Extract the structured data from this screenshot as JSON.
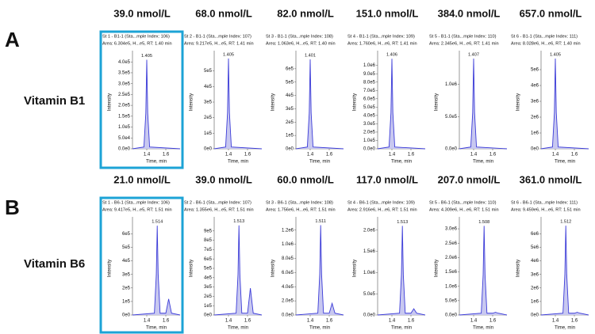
{
  "panels": [
    {
      "label": "A",
      "name": "Vitamin B1"
    },
    {
      "label": "B",
      "name": "Vitamin B6"
    }
  ],
  "chart_data": [
    {
      "type": "line",
      "title": "39.0 nmol/L",
      "subtitle": "St 1 - B1-1 (Sta...mple Index: 106)",
      "info": "Area: 6.304e5, H...e5, RT: 1.40 min",
      "annotation": "1.405",
      "xlabel": "Time, min",
      "ylabel": "Intensity",
      "color": "#3c3cd8",
      "fill": "#c8c8f0",
      "x": [
        1.25,
        1.37,
        1.39,
        1.4,
        1.41,
        1.43,
        1.75
      ],
      "values": [
        0,
        8200,
        164000,
        410000,
        164000,
        8200,
        0
      ],
      "xlim": [
        1.25,
        1.75
      ],
      "xticks": [
        1.4,
        1.6
      ],
      "ylim": [
        0,
        430000
      ],
      "yticks": [
        {
          "value": 0,
          "label": "0.0e0"
        },
        {
          "value": 50000,
          "label": "5.0e4"
        },
        {
          "value": 100000,
          "label": "1.0e5"
        },
        {
          "value": 150000,
          "label": "1.5e5"
        },
        {
          "value": 200000,
          "label": "2.0e5"
        },
        {
          "value": 250000,
          "label": "2.5e5"
        },
        {
          "value": 300000,
          "label": "3.0e5"
        },
        {
          "value": 350000,
          "label": "3.5e5"
        },
        {
          "value": 400000,
          "label": "4.0e5"
        }
      ]
    },
    {
      "type": "line",
      "title": "68.0 nmol/L",
      "subtitle": "St 2 - B1-1 (Sta...mple Index: 107)",
      "info": "Area: 9.217e5, H...e5, RT: 1.41 min",
      "annotation": "1.405",
      "xlabel": "Time, min",
      "ylabel": "Intensity",
      "color": "#3c3cd8",
      "fill": "#c8c8f0",
      "x": [
        1.25,
        1.37,
        1.39,
        1.4,
        1.41,
        1.43,
        1.75
      ],
      "values": [
        0,
        11600,
        232000,
        580000,
        232000,
        11600,
        0
      ],
      "xlim": [
        1.25,
        1.75
      ],
      "xticks": [
        1.4,
        1.6
      ],
      "ylim": [
        0,
        600000
      ],
      "yticks": [
        {
          "value": 0,
          "label": "0e0"
        },
        {
          "value": 100000,
          "label": "1e5"
        },
        {
          "value": 200000,
          "label": "2e5"
        },
        {
          "value": 300000,
          "label": "3e5"
        },
        {
          "value": 400000,
          "label": "4e5"
        },
        {
          "value": 500000,
          "label": "5e5"
        }
      ]
    },
    {
      "type": "line",
      "title": "82.0 nmol/L",
      "subtitle": "St 3 - B1-1 (Sta...mple Index: 108)",
      "info": "Area: 1.063e6, H...e5, RT: 1.40 min",
      "annotation": "1.401",
      "xlabel": "Time, min",
      "ylabel": "Intensity",
      "color": "#3c3cd8",
      "fill": "#c8c8f0",
      "x": [
        1.25,
        1.37,
        1.39,
        1.4,
        1.41,
        1.43,
        1.75
      ],
      "values": [
        0,
        13400,
        268000,
        670000,
        268000,
        13400,
        0
      ],
      "xlim": [
        1.25,
        1.75
      ],
      "xticks": [
        1.4,
        1.6
      ],
      "ylim": [
        0,
        700000
      ],
      "yticks": [
        {
          "value": 0,
          "label": "0e0"
        },
        {
          "value": 100000,
          "label": "1e5"
        },
        {
          "value": 200000,
          "label": "2e5"
        },
        {
          "value": 300000,
          "label": "3e5"
        },
        {
          "value": 400000,
          "label": "4e5"
        },
        {
          "value": 500000,
          "label": "5e5"
        },
        {
          "value": 600000,
          "label": "6e5"
        }
      ]
    },
    {
      "type": "line",
      "title": "151.0 nmol/L",
      "subtitle": "St 4 - B1-1 (Sta...mple Index: 109)",
      "info": "Area: 1.760e6, H...e6, RT: 1.41 min",
      "annotation": "1.406",
      "xlabel": "Time, min",
      "ylabel": "Intensity",
      "color": "#3c3cd8",
      "fill": "#c8c8f0",
      "x": [
        1.25,
        1.37,
        1.39,
        1.4,
        1.41,
        1.43,
        1.75
      ],
      "values": [
        0,
        21600,
        432000,
        1080000,
        432000,
        21600,
        0
      ],
      "xlim": [
        1.25,
        1.75
      ],
      "xticks": [
        1.4,
        1.6
      ],
      "ylim": [
        0,
        1120000
      ],
      "yticks": [
        {
          "value": 0,
          "label": "0.0e0"
        },
        {
          "value": 100000,
          "label": "1.0e5"
        },
        {
          "value": 200000,
          "label": "2.0e5"
        },
        {
          "value": 300000,
          "label": "3.0e5"
        },
        {
          "value": 400000,
          "label": "4.0e5"
        },
        {
          "value": 500000,
          "label": "5.0e5"
        },
        {
          "value": 600000,
          "label": "6.0e5"
        },
        {
          "value": 700000,
          "label": "7.0e5"
        },
        {
          "value": 800000,
          "label": "8.0e5"
        },
        {
          "value": 900000,
          "label": "9.0e5"
        },
        {
          "value": 1000000,
          "label": "1.0e6"
        }
      ]
    },
    {
      "type": "line",
      "title": "384.0 nmol/L",
      "subtitle": "St 5 - B1-1 (Sta...mple Index: 110)",
      "info": "Area: 2.345e6, H...e6, RT: 1.41 min",
      "annotation": "1.407",
      "xlabel": "Time, min",
      "ylabel": "Intensity",
      "color": "#3c3cd8",
      "fill": "#c8c8f0",
      "x": [
        1.25,
        1.37,
        1.39,
        1.4,
        1.41,
        1.43,
        1.75
      ],
      "values": [
        0,
        28000,
        560000,
        1400000,
        560000,
        28000,
        0
      ],
      "xlim": [
        1.25,
        1.75
      ],
      "xticks": [
        1.4,
        1.6
      ],
      "ylim": [
        0,
        1450000
      ],
      "yticks": [
        {
          "value": 0,
          "label": "0.0e0"
        },
        {
          "value": 500000,
          "label": "5.0e5"
        },
        {
          "value": 1000000,
          "label": "1.0e6"
        }
      ]
    },
    {
      "type": "line",
      "title": "657.0 nmol/L",
      "subtitle": "St 6 - B1-1 (Sta...mple Index: 111)",
      "info": "Area: 8.028e6, H...e6, RT: 1.40 min",
      "annotation": "1.405",
      "xlabel": "Time, min",
      "ylabel": "Intensity",
      "color": "#3c3cd8",
      "fill": "#c8c8f0",
      "x": [
        1.25,
        1.37,
        1.39,
        1.4,
        1.41,
        1.43,
        1.75
      ],
      "values": [
        0,
        114000,
        2280000,
        5700000,
        2280000,
        114000,
        0
      ],
      "xlim": [
        1.25,
        1.75
      ],
      "xticks": [
        1.4,
        1.6
      ],
      "ylim": [
        0,
        5900000
      ],
      "yticks": [
        {
          "value": 0,
          "label": "0e0"
        },
        {
          "value": 1000000,
          "label": "1e6"
        },
        {
          "value": 2000000,
          "label": "2e6"
        },
        {
          "value": 3000000,
          "label": "3e6"
        },
        {
          "value": 4000000,
          "label": "4e6"
        },
        {
          "value": 5000000,
          "label": "5e6"
        }
      ]
    },
    {
      "type": "line",
      "title": "21.0 nmol/L",
      "subtitle": "St 1 - B6-1 (Sta...mple Index: 106)",
      "info": "Area: 9.417e5, H...e5, RT: 1.51 min",
      "annotation": "1.514",
      "xlabel": "Time, min",
      "ylabel": "Intensity",
      "color": "#3c3cd8",
      "fill": "#c8c8f0",
      "x": [
        1.25,
        1.48,
        1.5,
        1.51,
        1.52,
        1.54,
        1.6,
        1.63,
        1.66,
        1.75
      ],
      "values": [
        0,
        13200,
        297000,
        660000,
        297000,
        13200,
        13200,
        118800,
        13200,
        0
      ],
      "xlim": [
        1.25,
        1.75
      ],
      "xticks": [
        1.4,
        1.6
      ],
      "ylim": [
        0,
        690000
      ],
      "yticks": [
        {
          "value": 0,
          "label": "0e0"
        },
        {
          "value": 100000,
          "label": "1e5"
        },
        {
          "value": 200000,
          "label": "2e5"
        },
        {
          "value": 300000,
          "label": "3e5"
        },
        {
          "value": 400000,
          "label": "4e5"
        },
        {
          "value": 500000,
          "label": "5e5"
        },
        {
          "value": 600000,
          "label": "6e5"
        }
      ]
    },
    {
      "type": "line",
      "title": "39.0 nmol/L",
      "subtitle": "St 2 - B6-1 (Sta...mple Index: 107)",
      "info": "Area: 1.355e6, H...e5, RT: 1.51 min",
      "annotation": "1.513",
      "xlabel": "Time, min",
      "ylabel": "Intensity",
      "color": "#3c3cd8",
      "fill": "#c8c8f0",
      "x": [
        1.25,
        1.48,
        1.5,
        1.51,
        1.52,
        1.54,
        1.6,
        1.63,
        1.66,
        1.75
      ],
      "values": [
        0,
        19200,
        432000,
        960000,
        432000,
        19200,
        19200,
        288000,
        19200,
        0
      ],
      "xlim": [
        1.25,
        1.75
      ],
      "xticks": [
        1.4,
        1.6
      ],
      "ylim": [
        0,
        1000000
      ],
      "yticks": [
        {
          "value": 0,
          "label": "0e0"
        },
        {
          "value": 100000,
          "label": "1e5"
        },
        {
          "value": 200000,
          "label": "2e5"
        },
        {
          "value": 300000,
          "label": "3e5"
        },
        {
          "value": 400000,
          "label": "4e5"
        },
        {
          "value": 500000,
          "label": "5e5"
        },
        {
          "value": 600000,
          "label": "6e5"
        },
        {
          "value": 700000,
          "label": "7e5"
        },
        {
          "value": 800000,
          "label": "8e5"
        },
        {
          "value": 900000,
          "label": "9e5"
        }
      ]
    },
    {
      "type": "line",
      "title": "60.0 nmol/L",
      "subtitle": "St 3 - B6-1 (Sta...mple Index: 108)",
      "info": "Area: 1.756e6, H...e6, RT: 1.51 min",
      "annotation": "1.511",
      "xlabel": "Time, min",
      "ylabel": "Intensity",
      "color": "#3c3cd8",
      "fill": "#c8c8f0",
      "x": [
        1.25,
        1.48,
        1.5,
        1.51,
        1.52,
        1.54,
        1.6,
        1.63,
        1.66,
        1.75
      ],
      "values": [
        0,
        25400,
        571500,
        1270000,
        571500,
        25400,
        25400,
        165100,
        25400,
        0
      ],
      "xlim": [
        1.25,
        1.75
      ],
      "xticks": [
        1.4,
        1.6
      ],
      "ylim": [
        0,
        1320000
      ],
      "yticks": [
        {
          "value": 0,
          "label": "0.0e0"
        },
        {
          "value": 200000,
          "label": "2.0e5"
        },
        {
          "value": 400000,
          "label": "4.0e5"
        },
        {
          "value": 600000,
          "label": "6.0e5"
        },
        {
          "value": 800000,
          "label": "8.0e5"
        },
        {
          "value": 1000000,
          "label": "1.0e6"
        },
        {
          "value": 1200000,
          "label": "1.2e6"
        }
      ]
    },
    {
      "type": "line",
      "title": "117.0 nmol/L",
      "subtitle": "St 4 - B6-1 (Sta...mple Index: 109)",
      "info": "Area: 2.916e6, H...e6, RT: 1.51 min",
      "annotation": "1.513",
      "xlabel": "Time, min",
      "ylabel": "Intensity",
      "color": "#3c3cd8",
      "fill": "#c8c8f0",
      "x": [
        1.25,
        1.48,
        1.5,
        1.51,
        1.52,
        1.54,
        1.6,
        1.63,
        1.66,
        1.75
      ],
      "values": [
        0,
        42000,
        945000,
        2100000,
        945000,
        42000,
        42000,
        147000,
        42000,
        0
      ],
      "xlim": [
        1.25,
        1.75
      ],
      "xticks": [
        1.4,
        1.6
      ],
      "ylim": [
        0,
        2200000
      ],
      "yticks": [
        {
          "value": 0,
          "label": "0.0e0"
        },
        {
          "value": 500000,
          "label": "5.0e5"
        },
        {
          "value": 1000000,
          "label": "1.0e6"
        },
        {
          "value": 1500000,
          "label": "1.5e6"
        },
        {
          "value": 2000000,
          "label": "2.0e6"
        }
      ]
    },
    {
      "type": "line",
      "title": "207.0 nmol/L",
      "subtitle": "St 5 - B6-1 (Sta...mple Index: 110)",
      "info": "Area: 4.309e6, H...e6, RT: 1.51 min",
      "annotation": "1.508",
      "xlabel": "Time, min",
      "ylabel": "Intensity",
      "color": "#3c3cd8",
      "fill": "#c8c8f0",
      "x": [
        1.25,
        1.48,
        1.5,
        1.51,
        1.52,
        1.54,
        1.6,
        1.63,
        1.66,
        1.75
      ],
      "values": [
        0,
        62000,
        1395000,
        3100000,
        1395000,
        62000,
        62000,
        93000,
        62000,
        0
      ],
      "xlim": [
        1.25,
        1.75
      ],
      "xticks": [
        1.4,
        1.6
      ],
      "ylim": [
        0,
        3250000
      ],
      "yticks": [
        {
          "value": 0,
          "label": "0.0e0"
        },
        {
          "value": 500000,
          "label": "5.0e5"
        },
        {
          "value": 1000000,
          "label": "1.0e6"
        },
        {
          "value": 1500000,
          "label": "1.5e6"
        },
        {
          "value": 2000000,
          "label": "2.0e6"
        },
        {
          "value": 2500000,
          "label": "2.5e6"
        },
        {
          "value": 3000000,
          "label": "3.0e6"
        }
      ]
    },
    {
      "type": "line",
      "title": "361.0 nmol/L",
      "subtitle": "St 6 - B6-1 (Sta...mple Index: 111)",
      "info": "Area: 9.459e6, H...e6, RT: 1.51 min",
      "annotation": "1.512",
      "xlabel": "Time, min",
      "ylabel": "Intensity",
      "color": "#3c3cd8",
      "fill": "#c8c8f0",
      "x": [
        1.25,
        1.48,
        1.5,
        1.51,
        1.52,
        1.54,
        1.6,
        1.63,
        1.66,
        1.75
      ],
      "values": [
        0,
        132000,
        2970000,
        6600000,
        2970000,
        132000,
        132000,
        198000,
        132000,
        0
      ],
      "xlim": [
        1.25,
        1.75
      ],
      "xticks": [
        1.4,
        1.6
      ],
      "ylim": [
        0,
        6900000
      ],
      "yticks": [
        {
          "value": 0,
          "label": "0e0"
        },
        {
          "value": 1000000,
          "label": "1e6"
        },
        {
          "value": 2000000,
          "label": "2e6"
        },
        {
          "value": 3000000,
          "label": "3e6"
        },
        {
          "value": 4000000,
          "label": "4e6"
        },
        {
          "value": 5000000,
          "label": "5e6"
        },
        {
          "value": 6000000,
          "label": "6e6"
        }
      ]
    }
  ]
}
